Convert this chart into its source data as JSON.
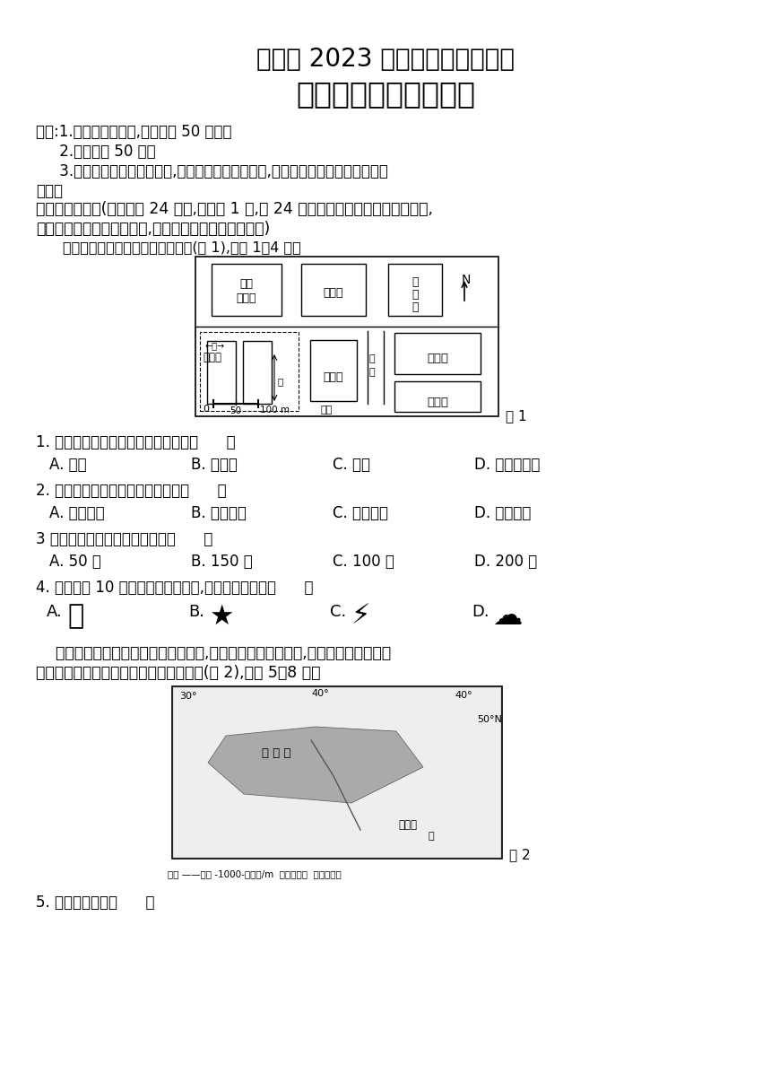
{
  "title1": "江西省 2023 年初中学业水平考试",
  "title2": "地理样卷试题卷（一）",
  "bg_color": "#ffffff",
  "text_color": "#000000",
  "instr1": "说明:1.本卷为闭卷考试,考试时间 50 分钟。",
  "instr2": "     2.本卷满分 50 分。",
  "instr3": "     3.本卷分为试题卷和答题卷,答案要求写在答题卷上,不得在试题卷上作答。否则不",
  "instr3b": "给分。",
  "sec1a": "一、单项选择题(本大题共 24 小题,每小题 1 分,共 24 分。在每小题列出的四个选项中,",
  "sec1b": "只有一项是符合题目要求的,多选、错选、不选均不得分)",
  "map_intro": "读江西某初中学校校园平面示意图(图 1),完成 1～4 题。",
  "q1": "1. 该校园平面图缺少地图三要素中的（      ）",
  "q1_opts": [
    "A. 方向",
    "B. 比例尺",
    "C. 图名",
    "D. 图例和注记"
  ],
  "q2": "2. 学校的综合实验楼位于足球场的（      ）",
  "q2_opts": [
    "A. 西北方向",
    "B. 东北方向",
    "C. 西南方向",
    "D. 东南方向"
  ],
  "q3": "3 学校篮球场区域的总宽度约为（      ）",
  "q3_opts": [
    "A. 50 米",
    "B. 150 米",
    "C. 100 米",
    "D. 200 米"
  ],
  "q4": "4. 该校将在 10 月份举行田径运动会,最适宜的天气是（      ）",
  "para2a": "    黑土是肥力最高、最适宜农耕的土壤,被誉为耕地中的大熊猫,乌克兰是世界三大黑",
  "para2b": "土分布区之一。读乌克兰黑土分布示意图(图 2),完成 5～8 题。",
  "q5": "5. 乌克兰地形以（      ）",
  "fig1_label": "图 1",
  "fig2_label": "图 2",
  "leg_text": "图例 ——国界 -1000-等高线/m  黑土分布区  河流、湖泊"
}
